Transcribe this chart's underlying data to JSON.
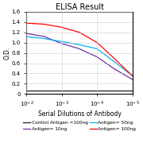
{
  "title": "ELISA Result",
  "ylabel": "O.D.",
  "xlabel": "Serial Dilutions of Antibody",
  "ylim": [
    0,
    1.6
  ],
  "yticks": [
    0,
    0.2,
    0.4,
    0.6,
    0.8,
    1.0,
    1.2,
    1.4,
    1.6
  ],
  "xticks": [
    -2,
    -3,
    -4,
    -5
  ],
  "lines": [
    {
      "label": "Control Antigen =100ng",
      "color": "#1a1a1a",
      "x_pts": [
        -5,
        -4.5,
        -4,
        -3.5,
        -3,
        -2.5,
        -2
      ],
      "y_pts": [
        0.07,
        0.07,
        0.07,
        0.07,
        0.07,
        0.07,
        0.07
      ]
    },
    {
      "label": "Antigen= 10ng",
      "color": "#7030a0",
      "x_pts": [
        -5,
        -4.5,
        -4,
        -3.5,
        -3,
        -2.5,
        -2
      ],
      "y_pts": [
        0.28,
        0.48,
        0.72,
        0.88,
        0.98,
        1.12,
        1.18
      ]
    },
    {
      "label": "Antigen= 50ng",
      "color": "#00b0f0",
      "x_pts": [
        -5,
        -4.5,
        -4,
        -3.5,
        -3,
        -2.5,
        -2
      ],
      "y_pts": [
        0.35,
        0.62,
        0.88,
        0.96,
        1.02,
        1.08,
        1.12
      ]
    },
    {
      "label": "Antigen= 100ng",
      "color": "#ff0000",
      "x_pts": [
        -5,
        -4.5,
        -4,
        -3.5,
        -3,
        -2.5,
        -2
      ],
      "y_pts": [
        0.35,
        0.68,
        1.0,
        1.2,
        1.3,
        1.36,
        1.38
      ]
    }
  ],
  "background_color": "#ffffff",
  "grid_color": "#cccccc",
  "title_fontsize": 7,
  "label_fontsize": 5.5,
  "tick_fontsize": 5,
  "legend_fontsize": 4.2
}
